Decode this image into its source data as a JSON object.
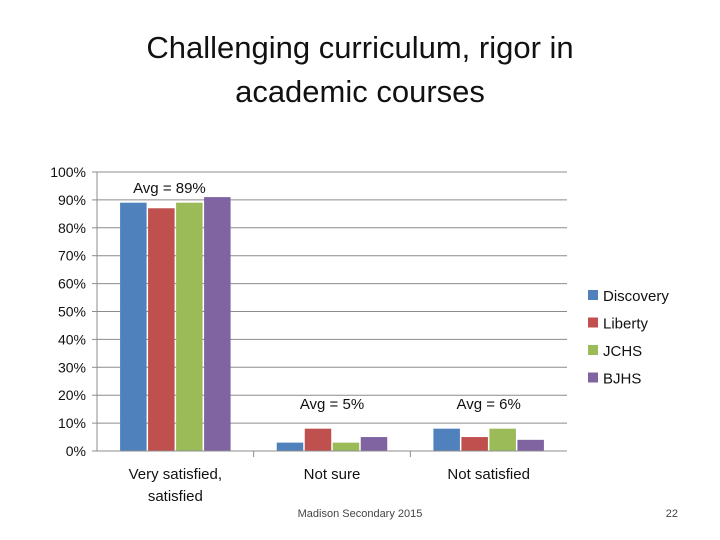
{
  "slide": {
    "title": "Challenging curriculum, rigor in\nacademic courses",
    "footer": "Madison Secondary 2015",
    "page_number": "22"
  },
  "chart_data": {
    "type": "bar",
    "title": "",
    "xlabel": "",
    "ylabel": "",
    "ylim": [
      0,
      100
    ],
    "y_ticks": [
      "0%",
      "10%",
      "20%",
      "30%",
      "40%",
      "50%",
      "60%",
      "70%",
      "80%",
      "90%",
      "100%"
    ],
    "grid": true,
    "legend_position": "right",
    "categories": [
      "Very satisfied, satisfied",
      "Not sure",
      "Not satisfied"
    ],
    "series": [
      {
        "name": "Discovery",
        "color": "#4F81BD",
        "values": [
          89,
          3,
          8
        ]
      },
      {
        "name": "Liberty",
        "color": "#C0504D",
        "values": [
          87,
          8,
          5
        ]
      },
      {
        "name": "JCHS",
        "color": "#9BBB59",
        "values": [
          89,
          3,
          8
        ]
      },
      {
        "name": "BJHS",
        "color": "#8064A2",
        "values": [
          91,
          5,
          4
        ]
      }
    ],
    "annotations": [
      "Avg = 89%",
      "Avg = 5%",
      "Avg = 6%"
    ]
  }
}
